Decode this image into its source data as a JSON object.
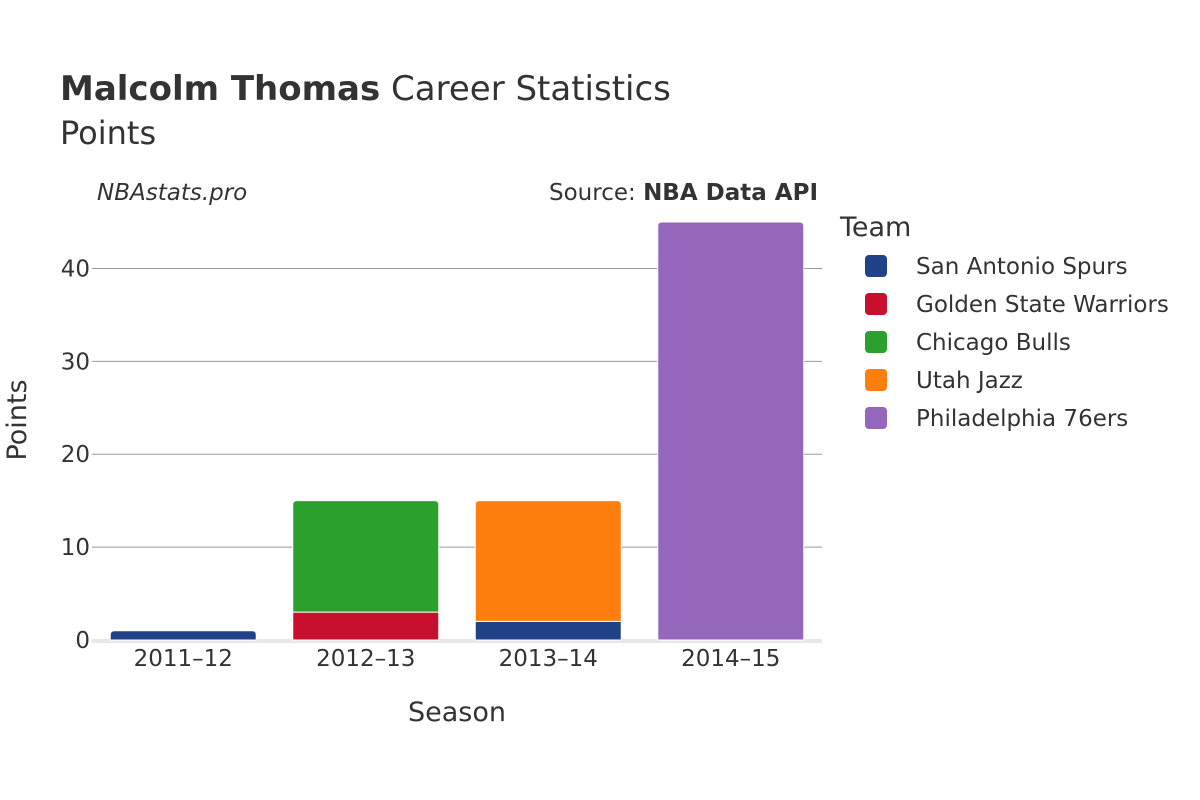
{
  "header": {
    "player_name": "Malcolm Thomas",
    "title_suffix": "Career Statistics",
    "subtitle": "Points",
    "watermark": "NBAstats.pro",
    "source_prefix": "Source: ",
    "source_name": "NBA Data API"
  },
  "chart_data": {
    "type": "bar",
    "stacked": true,
    "categories": [
      "2011–12",
      "2012–13",
      "2013–14",
      "2014–15"
    ],
    "series": [
      {
        "name": "San Antonio Spurs",
        "color": "#1f4289",
        "values": [
          1,
          0,
          2,
          0
        ]
      },
      {
        "name": "Golden State Warriors",
        "color": "#c8102e",
        "values": [
          0,
          3,
          0,
          0
        ]
      },
      {
        "name": "Chicago Bulls",
        "color": "#2ca02c",
        "values": [
          0,
          12,
          0,
          0
        ]
      },
      {
        "name": "Utah Jazz",
        "color": "#ff7f0e",
        "values": [
          0,
          0,
          13,
          0
        ]
      },
      {
        "name": "Philadelphia 76ers",
        "color": "#9467bd",
        "values": [
          0,
          0,
          0,
          45
        ]
      }
    ],
    "xlabel": "Season",
    "ylabel": "Points",
    "ylim": [
      0,
      45
    ],
    "yticks": [
      0,
      10,
      20,
      30,
      40
    ],
    "legend_title": "Team",
    "legend_position": "right",
    "grid": true
  }
}
